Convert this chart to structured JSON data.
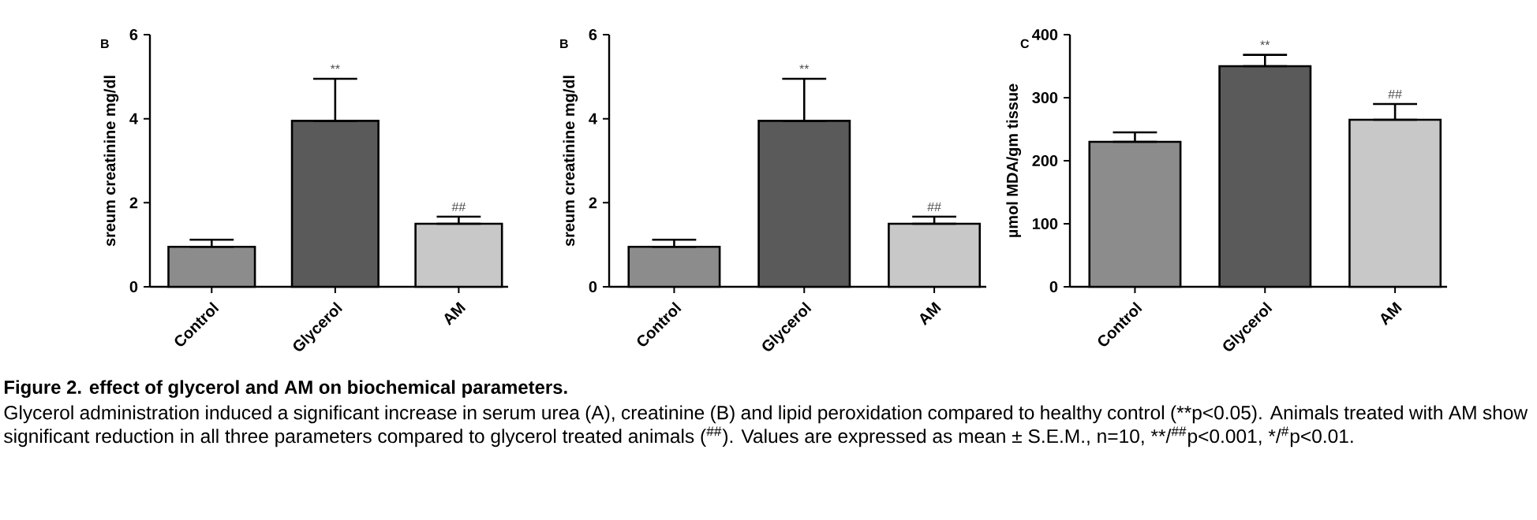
{
  "chart_data": [
    {
      "type": "bar",
      "title": "B",
      "ylabel": "sreum creatinine mg/dl",
      "categories": [
        "Control",
        "Glycerol",
        "AM"
      ],
      "values": [
        0.95,
        3.95,
        1.5
      ],
      "errors": [
        [
          0.95,
          1.12
        ],
        [
          3.95,
          4.95
        ],
        [
          1.5,
          1.67
        ]
      ],
      "colors": [
        "#8c8c8c",
        "#5a5a5a",
        "#c8c8c8"
      ],
      "ylim": [
        0,
        6
      ],
      "yticks": [
        0,
        2,
        4,
        6
      ],
      "annotations": [
        {
          "text": "**",
          "x": "Glycerol",
          "y": 4.95
        },
        {
          "text": "##",
          "x": "AM",
          "y": 1.67
        }
      ]
    },
    {
      "type": "bar",
      "title": "B",
      "ylabel": "sreum creatinine mg/dl",
      "categories": [
        "Control",
        "Glycerol",
        "AM"
      ],
      "values": [
        0.95,
        3.95,
        1.5
      ],
      "errors": [
        [
          0.95,
          1.12
        ],
        [
          3.95,
          4.95
        ],
        [
          1.5,
          1.67
        ]
      ],
      "colors": [
        "#8c8c8c",
        "#5a5a5a",
        "#c8c8c8"
      ],
      "ylim": [
        0,
        6
      ],
      "yticks": [
        0,
        2,
        4,
        6
      ],
      "annotations": [
        {
          "text": "**",
          "x": "Glycerol",
          "y": 4.95
        },
        {
          "text": "##",
          "x": "AM",
          "y": 1.67
        }
      ]
    },
    {
      "type": "bar",
      "title": "C",
      "ylabel": "µmol MDA/gm tissue",
      "categories": [
        "Control",
        "Glycerol",
        "AM"
      ],
      "values": [
        230,
        350,
        265
      ],
      "errors": [
        [
          230,
          245
        ],
        [
          350,
          368
        ],
        [
          265,
          290
        ]
      ],
      "colors": [
        "#8c8c8c",
        "#5a5a5a",
        "#c8c8c8"
      ],
      "ylim": [
        0,
        400
      ],
      "yticks": [
        0,
        100,
        200,
        300,
        400
      ],
      "annotations": [
        {
          "text": "**",
          "x": "Glycerol",
          "y": 368
        },
        {
          "text": "##",
          "x": "AM",
          "y": 290
        }
      ]
    },
    {
      "type": "other",
      "title": "Figure 2. effect of glycerol and AM on biochemical parameters.",
      "annotations": [
        "Glycerol administration induced a significant increase in serum urea (A), creatinine (B) and lipid peroxidation compared to healthy control (**p<0.05). Animals treated with AM show significant reduction in all three parameters compared to glycerol treated animals ($^{##}$). Values are expressed as mean ± S.E.M., n=10, **/$^{##}$p<0.001, */$^{#}$p<0.01."
      ]
    }
  ]
}
